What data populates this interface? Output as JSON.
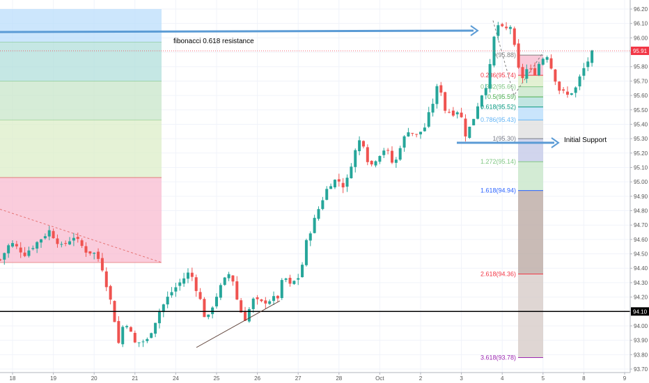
{
  "chart_data": {
    "type": "candlestick",
    "y_axis": {
      "min": 93.7,
      "max": 96.2,
      "ticks": [
        "96.20",
        "96.10",
        "96.00",
        "95.90",
        "95.80",
        "95.70",
        "95.60",
        "95.50",
        "95.40",
        "95.30",
        "95.20",
        "95.10",
        "95.00",
        "94.90",
        "94.80",
        "94.70",
        "94.60",
        "94.50",
        "94.40",
        "94.30",
        "94.20",
        "94.10",
        "94.00",
        "93.90",
        "93.80",
        "93.70"
      ],
      "position": "right"
    },
    "x_axis": {
      "ticks": [
        {
          "label": "18",
          "t": 0.0
        },
        {
          "label": "19",
          "t": 1.0
        },
        {
          "label": "20",
          "t": 2.0
        },
        {
          "label": "21",
          "t": 3.0
        },
        {
          "label": "24",
          "t": 4.0
        },
        {
          "label": "25",
          "t": 5.0
        },
        {
          "label": "26",
          "t": 6.0
        },
        {
          "label": "27",
          "t": 7.0
        },
        {
          "label": "28",
          "t": 8.0
        },
        {
          "label": "Oct",
          "t": 9.0
        },
        {
          "label": "2",
          "t": 10.0
        },
        {
          "label": "3",
          "t": 11.0
        },
        {
          "label": "4",
          "t": 12.0
        },
        {
          "label": "5",
          "t": 13.0
        },
        {
          "label": "8",
          "t": 14.0
        },
        {
          "label": "9",
          "t": 15.0
        }
      ]
    },
    "price_path": [
      [
        -0.3,
        94.46
      ],
      [
        -0.05,
        94.58
      ],
      [
        0.3,
        94.5
      ],
      [
        0.6,
        94.58
      ],
      [
        0.9,
        94.66
      ],
      [
        1.2,
        94.55
      ],
      [
        1.5,
        94.62
      ],
      [
        1.8,
        94.52
      ],
      [
        2.05,
        94.5
      ],
      [
        2.2,
        94.4
      ],
      [
        2.45,
        94.12
      ],
      [
        2.6,
        93.88
      ],
      [
        2.75,
        94.05
      ],
      [
        3.0,
        93.88
      ],
      [
        3.3,
        93.9
      ],
      [
        3.6,
        94.1
      ],
      [
        3.85,
        94.22
      ],
      [
        4.1,
        94.3
      ],
      [
        4.35,
        94.38
      ],
      [
        4.6,
        94.18
      ],
      [
        4.75,
        94.02
      ],
      [
        4.95,
        94.18
      ],
      [
        5.15,
        94.3
      ],
      [
        5.35,
        94.38
      ],
      [
        5.55,
        94.12
      ],
      [
        5.7,
        94.05
      ],
      [
        5.9,
        94.18
      ],
      [
        6.1,
        94.16
      ],
      [
        6.3,
        94.18
      ],
      [
        6.5,
        94.2
      ],
      [
        6.65,
        94.35
      ],
      [
        6.8,
        94.28
      ],
      [
        7.05,
        94.35
      ],
      [
        7.2,
        94.58
      ],
      [
        7.35,
        94.7
      ],
      [
        7.55,
        94.85
      ],
      [
        7.75,
        94.98
      ],
      [
        7.95,
        95.02
      ],
      [
        8.15,
        94.96
      ],
      [
        8.35,
        95.18
      ],
      [
        8.55,
        95.32
      ],
      [
        8.75,
        95.1
      ],
      [
        8.95,
        95.18
      ],
      [
        9.15,
        95.24
      ],
      [
        9.35,
        95.1
      ],
      [
        9.5,
        95.25
      ],
      [
        9.7,
        95.36
      ],
      [
        9.9,
        95.32
      ],
      [
        10.1,
        95.38
      ],
      [
        10.3,
        95.55
      ],
      [
        10.45,
        95.7
      ],
      [
        10.6,
        95.5
      ],
      [
        10.8,
        95.48
      ],
      [
        10.95,
        95.5
      ],
      [
        11.1,
        95.33
      ],
      [
        11.25,
        95.4
      ],
      [
        11.45,
        95.58
      ],
      [
        11.65,
        95.7
      ],
      [
        11.85,
        96.1
      ],
      [
        12.05,
        96.05
      ],
      [
        12.2,
        96.08
      ],
      [
        12.35,
        95.86
      ],
      [
        12.45,
        95.7
      ],
      [
        12.6,
        95.78
      ],
      [
        12.8,
        95.76
      ],
      [
        12.95,
        95.85
      ],
      [
        13.1,
        95.88
      ],
      [
        13.25,
        95.75
      ],
      [
        13.4,
        95.64
      ],
      [
        13.6,
        95.6
      ],
      [
        13.8,
        95.65
      ],
      [
        13.95,
        95.76
      ],
      [
        14.1,
        95.84
      ],
      [
        14.25,
        95.92
      ]
    ],
    "fibonacci": {
      "levels": [
        {
          "label": "0(95.88)",
          "ratio": 0,
          "value": 95.88,
          "color": "#808080"
        },
        {
          "label": "0.236(95.74)",
          "ratio": 0.236,
          "value": 95.74,
          "color": "#f23645"
        },
        {
          "label": "0.382(95.66)",
          "ratio": 0.382,
          "value": 95.66,
          "color": "#81c784"
        },
        {
          "label": "0.5(95.59)",
          "ratio": 0.5,
          "value": 95.59,
          "color": "#4caf50"
        },
        {
          "label": "0.618(95.52)",
          "ratio": 0.618,
          "value": 95.52,
          "color": "#089981"
        },
        {
          "label": "0.786(95.43)",
          "ratio": 0.786,
          "value": 95.43,
          "color": "#64b5f6"
        },
        {
          "label": "1(95.30)",
          "ratio": 1,
          "value": 95.3,
          "color": "#787b86"
        },
        {
          "label": "1.272(95.14)",
          "ratio": 1.272,
          "value": 95.14,
          "color": "#81c784"
        },
        {
          "label": "1.618(94.94)",
          "ratio": 1.618,
          "value": 94.94,
          "color": "#2962ff"
        },
        {
          "label": "2.618(94.36)",
          "ratio": 2.618,
          "value": 94.36,
          "color": "#f23645"
        },
        {
          "label": "3.618(93.78)",
          "ratio": 3.618,
          "value": 93.78,
          "color": "#9c27b0"
        }
      ],
      "zone_colors": [
        "#f8bbd0",
        "#dcedc8",
        "#c8e6c9",
        "#b2dfdb",
        "#bbdefb",
        "#e0e0e0",
        "#c5cae9",
        "#c8e6c9",
        "#bcaaa4",
        "#d7ccc8"
      ]
    },
    "annotations": [
      {
        "text": "fibonacci 0.618 resistance",
        "color": "#000000"
      },
      {
        "text": "Initial Support",
        "color": "#000000"
      }
    ],
    "horizontal_line": {
      "value": 94.1,
      "label": "94.10",
      "color": "#000000"
    },
    "last_price": {
      "value": 95.91,
      "label": "95.91",
      "color": "#f23645"
    },
    "left_zones": [
      "#bbdefb",
      "#b2dfdb",
      "#c8e6c9",
      "#dcedc8",
      "#f8bbd0"
    ],
    "colors": {
      "up": "#26a69a",
      "down": "#ef5350",
      "arrow": "#5b9bd5",
      "grid": "#f0f3fa"
    }
  }
}
